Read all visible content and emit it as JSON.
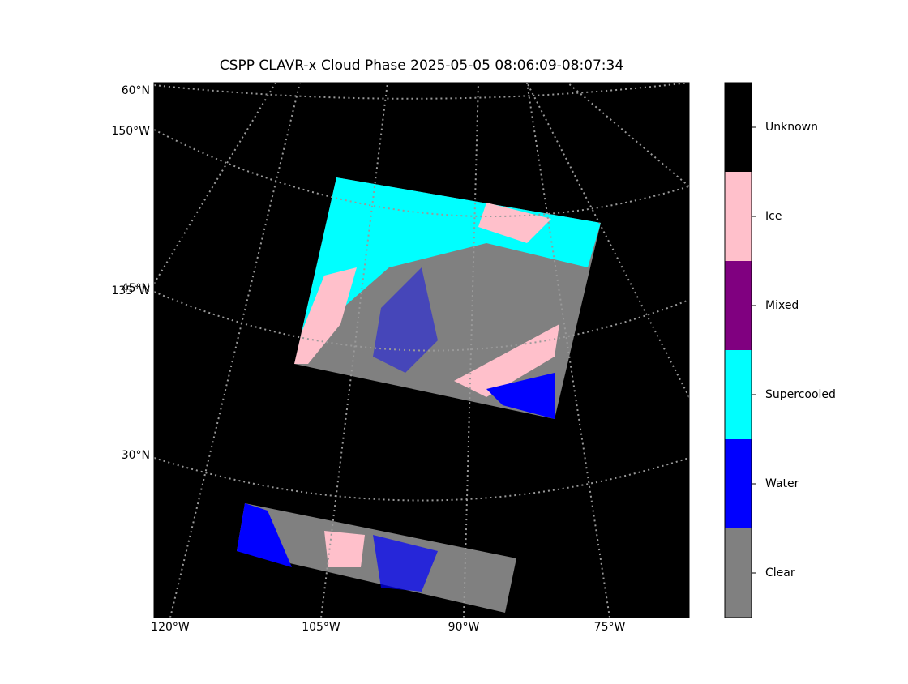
{
  "title": "CSPP CLAVR-x Cloud Phase 2025-05-05 08:06:09-08:07:34",
  "left_labels": [
    "60°N",
    "150°W",
    "135°W",
    "45°N",
    "30°N"
  ],
  "bottom_labels": [
    "120°W",
    "105°W",
    "90°W",
    "75°W"
  ],
  "colorbar": [
    {
      "name": "Unknown",
      "color": "#000000"
    },
    {
      "name": "Ice",
      "color": "#ffc0cb"
    },
    {
      "name": "Mixed",
      "color": "#800080"
    },
    {
      "name": "Supercooled",
      "color": "#00ffff"
    },
    {
      "name": "Water",
      "color": "#0000ff"
    },
    {
      "name": "Clear",
      "color": "#808080"
    }
  ]
}
